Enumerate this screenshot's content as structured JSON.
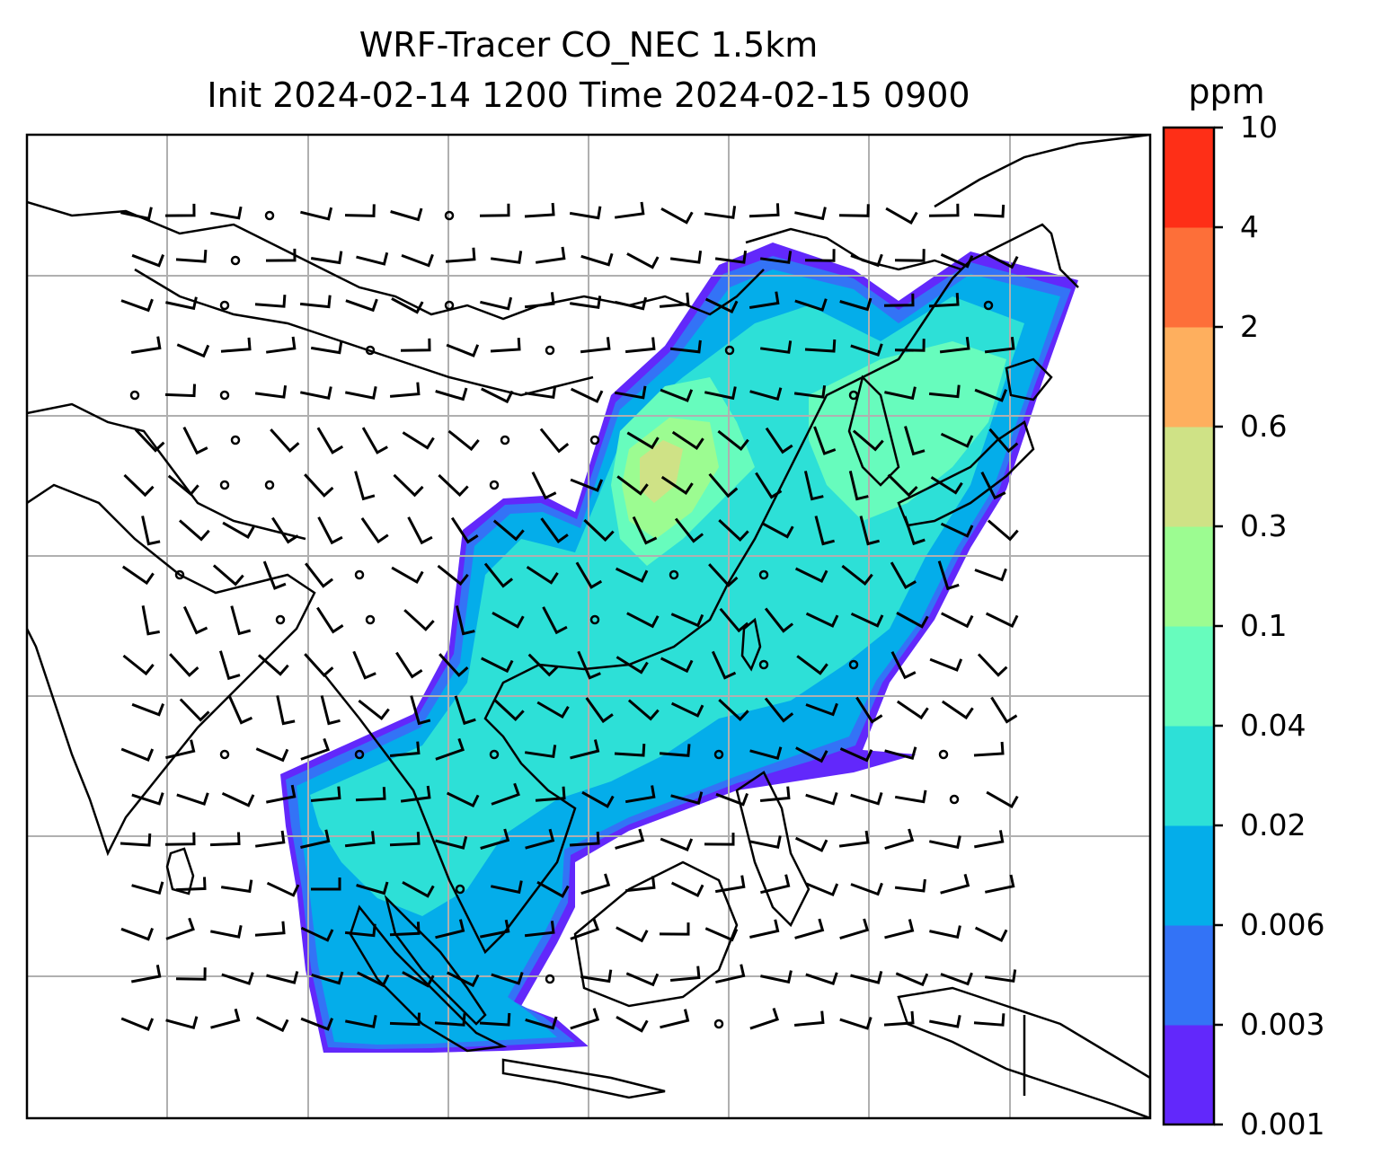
{
  "title": {
    "line1": "WRF-Tracer CO_NEC 1.5km",
    "line2": "Init 2024-02-14 1200 Time 2024-02-15 0900"
  },
  "colorbar": {
    "unit": "ppm",
    "ticks": [
      "0.001",
      "0.003",
      "0.006",
      "0.02",
      "0.04",
      "0.1",
      "0.3",
      "0.6",
      "2",
      "4",
      "10"
    ],
    "colors": [
      "#6228fb",
      "#3373f6",
      "#04adea",
      "#2de0d7",
      "#67fcbd",
      "#9cfc91",
      "#cfe286",
      "#feaf5e",
      "#fd6f39",
      "#fe2f17"
    ]
  },
  "map": {
    "projection": "Lambert conformal",
    "coastline_color": "#000000",
    "gridline_color": "#b0b0b0",
    "wind_barb_color": "#000000",
    "content": "CO_NEC tracer concentration plume over East and Southeast Asia with 1.5 km wind barbs"
  }
}
